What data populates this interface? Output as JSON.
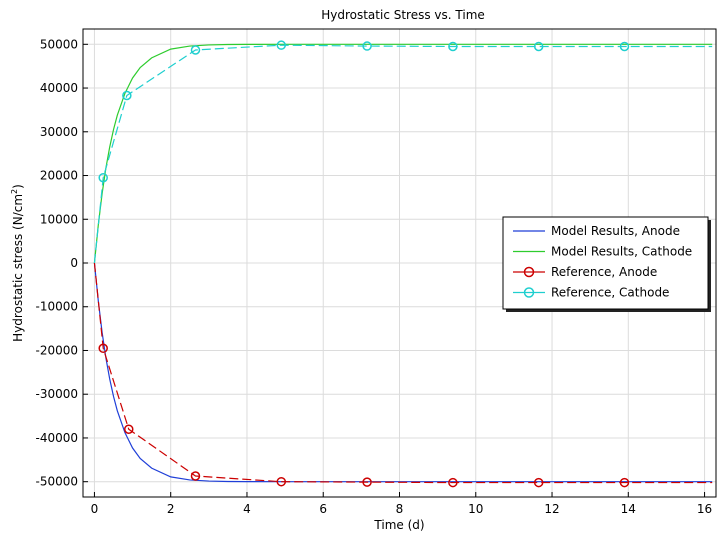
{
  "chart_data": {
    "type": "line",
    "title": "Hydrostatic Stress vs. Time",
    "xlabel": "Time (d)",
    "ylabel_main": "Hydrostatic stress (N/cm",
    "ylabel_sup": "2",
    "ylabel_close": ")",
    "xlim": [
      -0.3,
      16.3
    ],
    "ylim": [
      -53500,
      53500
    ],
    "x_ticks": [
      0,
      2,
      4,
      6,
      8,
      10,
      12,
      14,
      16
    ],
    "y_ticks": [
      -50000,
      -40000,
      -30000,
      -20000,
      -10000,
      0,
      10000,
      20000,
      30000,
      40000,
      50000
    ],
    "grid": true,
    "legend_position": "right",
    "series": [
      {
        "name": "Model Results, Anode",
        "color": "#1f3fd8",
        "style": "solid",
        "marker": "none",
        "x": [
          0,
          0.1,
          0.2,
          0.3,
          0.4,
          0.5,
          0.6,
          0.8,
          1.0,
          1.2,
          1.5,
          2.0,
          2.5,
          3.0,
          3.5,
          4.0,
          5.0,
          6.0,
          8.0,
          10.0,
          12.0,
          14.0,
          16.2
        ],
        "y": [
          0,
          -8600,
          -15800,
          -21700,
          -26500,
          -30500,
          -33800,
          -38800,
          -42300,
          -44700,
          -46900,
          -48900,
          -49600,
          -49850,
          -49950,
          -49980,
          -50000,
          -50000,
          -50000,
          -50000,
          -50000,
          -50000,
          -50000
        ]
      },
      {
        "name": "Model Results, Cathode",
        "color": "#2ecc2e",
        "style": "solid",
        "marker": "none",
        "x": [
          0,
          0.1,
          0.2,
          0.3,
          0.4,
          0.5,
          0.6,
          0.8,
          1.0,
          1.2,
          1.5,
          2.0,
          2.5,
          3.0,
          3.5,
          4.0,
          5.0,
          6.0,
          8.0,
          10.0,
          12.0,
          14.0,
          16.2
        ],
        "y": [
          0,
          8600,
          15800,
          21700,
          26500,
          30500,
          33800,
          38800,
          42300,
          44700,
          46900,
          48900,
          49600,
          49850,
          49950,
          49980,
          50000,
          50000,
          50000,
          50000,
          50000,
          50000,
          50000
        ]
      },
      {
        "name": "Reference, Anode",
        "color": "#cc0000",
        "style": "dashed",
        "marker": "circle",
        "x": [
          0,
          0.23,
          0.9,
          2.65,
          4.9,
          7.15,
          9.4,
          11.65,
          13.9,
          16.2
        ],
        "y": [
          0,
          -19500,
          -38000,
          -48700,
          -50000,
          -50100,
          -50200,
          -50200,
          -50200,
          -50200
        ],
        "marker_x": [
          0.23,
          0.9,
          2.65,
          4.9,
          7.15,
          9.4,
          11.65,
          13.9
        ],
        "marker_y": [
          -19500,
          -38000,
          -48700,
          -50000,
          -50100,
          -50200,
          -50200,
          -50200
        ]
      },
      {
        "name": "Reference, Cathode",
        "color": "#1fcfcf",
        "style": "dashed",
        "marker": "circle",
        "x": [
          0,
          0.23,
          0.85,
          2.65,
          4.9,
          7.15,
          9.4,
          11.65,
          13.9,
          16.2
        ],
        "y": [
          0,
          19500,
          38300,
          48700,
          49800,
          49600,
          49500,
          49500,
          49500,
          49500
        ],
        "marker_x": [
          0.23,
          0.85,
          2.65,
          4.9,
          7.15,
          9.4,
          11.65,
          13.9
        ],
        "marker_y": [
          19500,
          38300,
          48700,
          49800,
          49600,
          49500,
          49500,
          49500
        ]
      }
    ]
  }
}
